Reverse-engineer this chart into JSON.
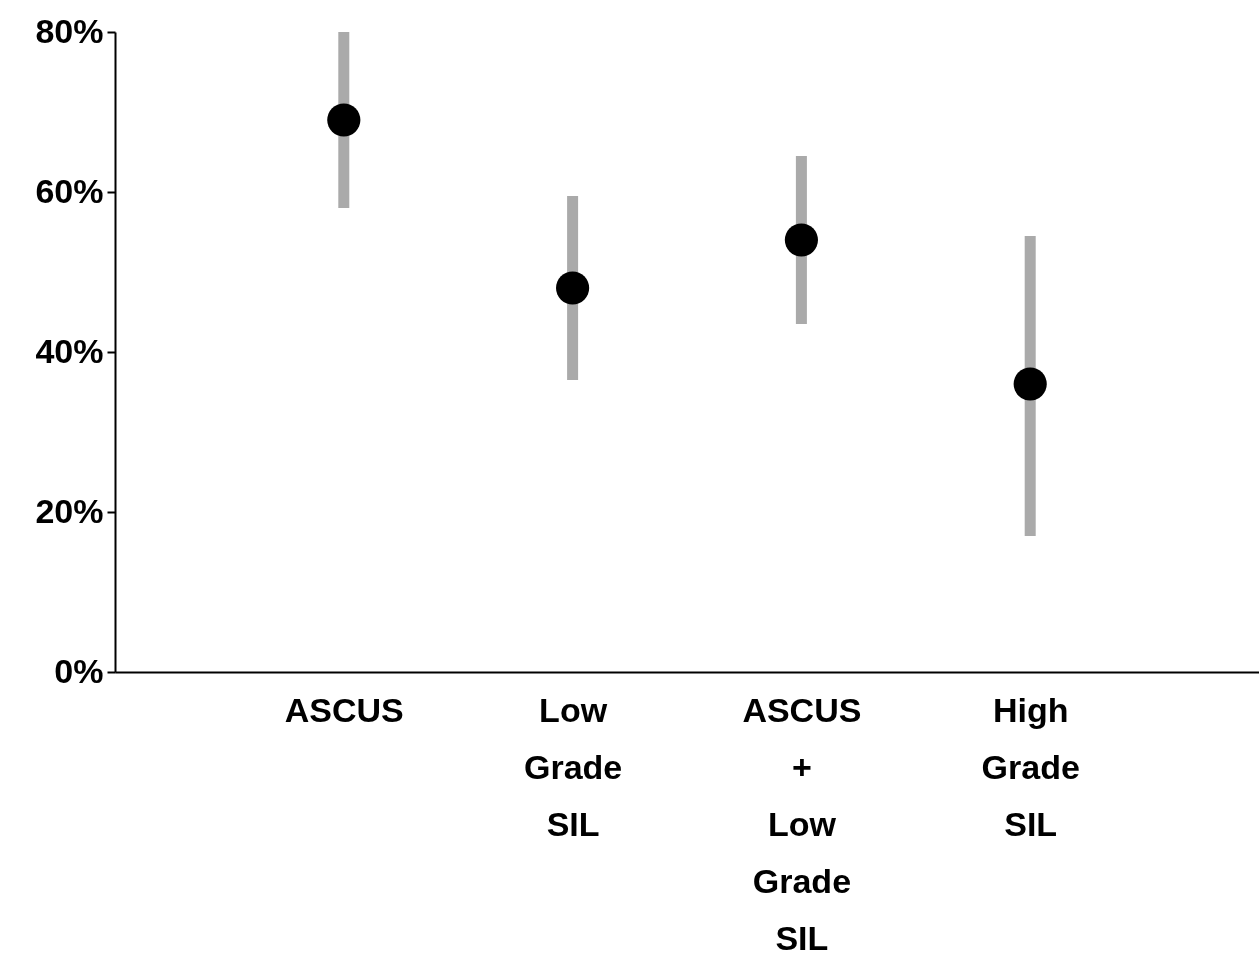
{
  "chart_data": {
    "type": "scatter",
    "categories": [
      "ASCUS",
      "Low Grade SIL",
      "ASCUS + Low Grade SIL",
      "High Grade SIL"
    ],
    "series": [
      {
        "color": "#000000",
        "values": [
          69,
          48,
          54,
          36
        ],
        "errors": [
          [
            58,
            80
          ],
          [
            36.5,
            59.5
          ],
          [
            43.5,
            64.5
          ],
          [
            17,
            54.5
          ]
        ]
      }
    ],
    "ylim": [
      0,
      80
    ],
    "yticks": [
      {
        "value": 0,
        "label": "0%"
      },
      {
        "value": 20,
        "label": "20%"
      },
      {
        "value": 40,
        "label": "40%"
      },
      {
        "value": 60,
        "label": "60%"
      },
      {
        "value": 80,
        "label": "80%"
      }
    ],
    "marker": "circle",
    "grid": false
  }
}
